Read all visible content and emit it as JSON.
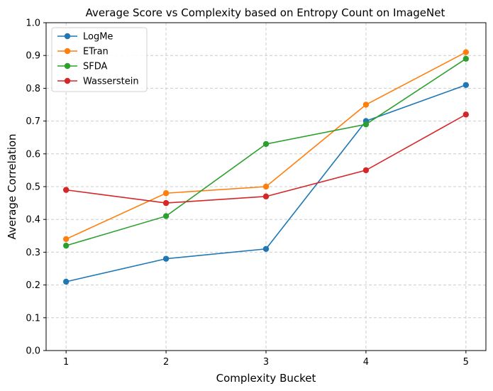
{
  "chart_data": {
    "type": "line",
    "title": "Average Score vs Complexity based on Entropy Count on ImageNet",
    "xlabel": "Complexity Bucket",
    "ylabel": "Average Correlation",
    "x": [
      1,
      2,
      3,
      4,
      5
    ],
    "x_tick_labels": [
      "1",
      "2",
      "3",
      "4",
      "5"
    ],
    "ylim": [
      0,
      1
    ],
    "y_ticks": [
      0.0,
      0.1,
      0.2,
      0.3,
      0.4,
      0.5,
      0.6,
      0.7,
      0.8,
      0.9,
      1.0
    ],
    "y_tick_labels": [
      "0.0",
      "0.1",
      "0.2",
      "0.3",
      "0.4",
      "0.5",
      "0.6",
      "0.7",
      "0.8",
      "0.9",
      "1.0"
    ],
    "grid": true,
    "legend_position": "top-left",
    "series": [
      {
        "name": "LogMe",
        "color": "#1f77b4",
        "values": [
          0.21,
          0.28,
          0.31,
          0.7,
          0.81
        ]
      },
      {
        "name": "ETran",
        "color": "#ff7f0e",
        "values": [
          0.34,
          0.48,
          0.5,
          0.75,
          0.91
        ]
      },
      {
        "name": "SFDA",
        "color": "#2ca02c",
        "values": [
          0.32,
          0.41,
          0.63,
          0.69,
          0.89
        ]
      },
      {
        "name": "Wasserstein",
        "color": "#d62728",
        "values": [
          0.49,
          0.45,
          0.47,
          0.55,
          0.72
        ]
      }
    ]
  }
}
